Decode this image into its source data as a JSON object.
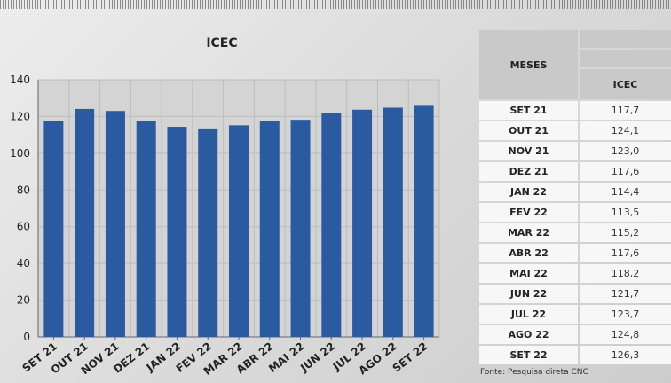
{
  "chart_data": {
    "type": "bar",
    "title": "ICEC",
    "categories": [
      "SET 21",
      "OUT 21",
      "NOV 21",
      "DEZ 21",
      "JAN 22",
      "FEV 22",
      "MAR 22",
      "ABR 22",
      "MAI 22",
      "JUN 22",
      "JUL 22",
      "AGO 22",
      "SET 22"
    ],
    "values": [
      117.7,
      124.1,
      123.0,
      117.6,
      114.4,
      113.5,
      115.2,
      117.6,
      118.2,
      121.7,
      123.7,
      124.8,
      126.3
    ],
    "ylim": [
      0,
      140
    ],
    "yticks": [
      "0",
      "20",
      "40",
      "60",
      "80",
      "100",
      "120",
      "140"
    ],
    "grid": true,
    "bar_color": "#2a5aa0"
  },
  "table": {
    "col1_header": "MESES",
    "col2_header": "ICEC",
    "rows": [
      {
        "month": "SET 21",
        "value": "117,7"
      },
      {
        "month": "OUT 21",
        "value": "124,1"
      },
      {
        "month": "NOV 21",
        "value": "123,0"
      },
      {
        "month": "DEZ 21",
        "value": "117,6"
      },
      {
        "month": "JAN 22",
        "value": "114,4"
      },
      {
        "month": "FEV 22",
        "value": "113,5"
      },
      {
        "month": "MAR 22",
        "value": "115,2"
      },
      {
        "month": "ABR 22",
        "value": "117,6"
      },
      {
        "month": "MAI 22",
        "value": "118,2"
      },
      {
        "month": "JUN 22",
        "value": "121,7"
      },
      {
        "month": "JUL 22",
        "value": "123,7"
      },
      {
        "month": "AGO 22",
        "value": "124,8"
      },
      {
        "month": "SET 22",
        "value": "126,3"
      }
    ]
  },
  "footer": "Fonte: Pesquisa direta CNC"
}
